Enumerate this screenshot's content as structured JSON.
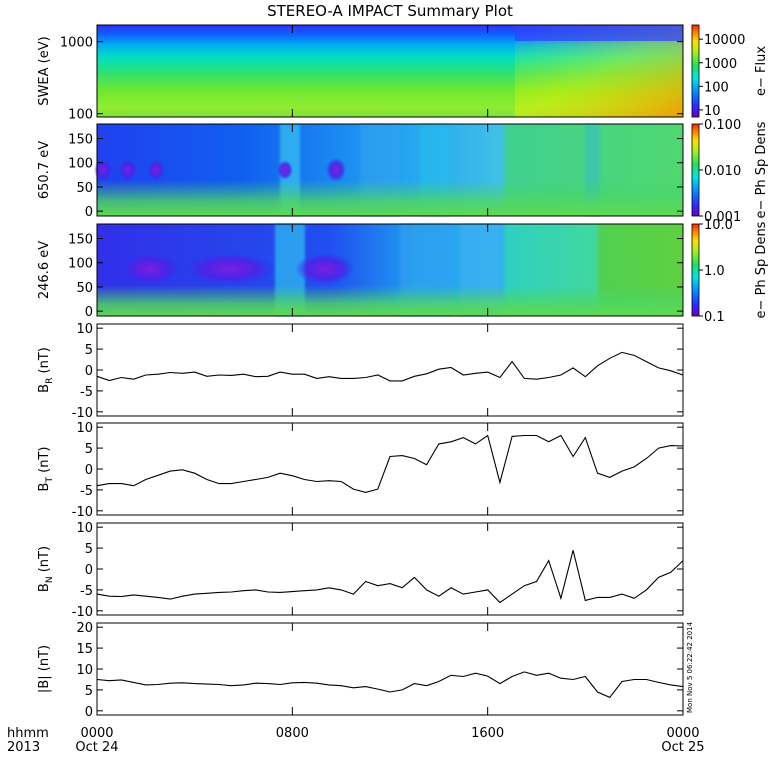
{
  "title": "STEREO-A IMPACT Summary Plot",
  "stamp": "Mon Nov  5 06:22:42 2014",
  "xaxis": {
    "corner_top": "hhmm",
    "corner_bottom": "2013",
    "ticks": [
      {
        "hhmm": "0000",
        "date": "Oct 24",
        "hour": 0
      },
      {
        "hhmm": "0800",
        "date": "",
        "hour": 8
      },
      {
        "hhmm": "1600",
        "date": "",
        "hour": 16
      },
      {
        "hhmm": "0000",
        "date": "Oct 25",
        "hour": 24
      }
    ]
  },
  "colors": {
    "line": "#000000",
    "frame": "#000000"
  },
  "chart_data": [
    {
      "type": "heatmap",
      "id": "swea",
      "ylabel": "SWEA (eV)",
      "yscale": "log",
      "ylim": [
        90,
        1700
      ],
      "yticks": [
        "100",
        "1000"
      ],
      "colorbar": {
        "label": "e− Flux",
        "scale": "log",
        "range": [
          5,
          40000
        ],
        "ticks": [
          "10",
          "100",
          "1000",
          "10000"
        ]
      },
      "x_hours": [
        0,
        2,
        4,
        6,
        8,
        10,
        12,
        14,
        16,
        17.5,
        18,
        20,
        22,
        24
      ],
      "description_levels": "flux increases toward low energy; enhancement after 17.5h"
    },
    {
      "type": "heatmap",
      "id": "pad650",
      "ylabel": "650.7 eV",
      "yscale": "linear",
      "ylim": [
        -10,
        180
      ],
      "yticks": [
        "0",
        "50",
        "100",
        "150"
      ],
      "colorbar": {
        "label": "e− Ph Sp Dens",
        "scale": "log",
        "range": [
          0.001,
          0.1
        ],
        "ticks": [
          "0.001",
          "0.010",
          "0.100"
        ]
      }
    },
    {
      "type": "heatmap",
      "id": "pad246",
      "ylabel": "246.6 eV",
      "yscale": "linear",
      "ylim": [
        -10,
        180
      ],
      "yticks": [
        "0",
        "50",
        "100",
        "150"
      ],
      "colorbar": {
        "label": "e− Ph Sp Dens",
        "scale": "log",
        "range": [
          0.1,
          10
        ],
        "ticks": [
          "0.1",
          "1.0",
          "10.0"
        ]
      }
    },
    {
      "type": "line",
      "id": "br",
      "ylabel_main": "B",
      "ylabel_sub": "R",
      "ylabel_unit": " (nT)",
      "ylim": [
        -11,
        11
      ],
      "yticks": [
        "-10",
        "-5",
        "0",
        "5",
        "10"
      ],
      "x": [
        0,
        0.5,
        1,
        1.5,
        2,
        2.5,
        3,
        3.5,
        4,
        4.5,
        5,
        5.5,
        6,
        6.5,
        7,
        7.5,
        8,
        8.5,
        9,
        9.5,
        10,
        10.5,
        11,
        11.5,
        12,
        12.5,
        13,
        13.5,
        14,
        14.5,
        15,
        15.5,
        16,
        16.5,
        17,
        17.5,
        18,
        18.5,
        19,
        19.5,
        20,
        20.5,
        21,
        21.5,
        22,
        22.5,
        23,
        23.5,
        24
      ],
      "y": [
        -1.5,
        -2.5,
        -1.8,
        -2.2,
        -1.2,
        -1,
        -0.6,
        -0.8,
        -0.5,
        -1.5,
        -1.2,
        -1.3,
        -1,
        -1.6,
        -1.5,
        -0.5,
        -1,
        -1,
        -2,
        -1.6,
        -2,
        -2,
        -1.8,
        -1.2,
        -2.6,
        -2.6,
        -1.5,
        -0.9,
        0.2,
        0.6,
        -1.2,
        -0.8,
        -0.5,
        -1.8,
        2,
        -2,
        -2.2,
        -1.8,
        -1.2,
        0.5,
        -1.6,
        1,
        2.8,
        4.2,
        3.5,
        2,
        0.5,
        -0.2,
        -1.2
      ]
    },
    {
      "type": "line",
      "id": "bt",
      "ylabel_main": "B",
      "ylabel_sub": "T",
      "ylabel_unit": " (nT)",
      "ylim": [
        -11,
        11
      ],
      "yticks": [
        "-10",
        "-5",
        "0",
        "5",
        "10"
      ],
      "x": [
        0,
        0.5,
        1,
        1.5,
        2,
        2.5,
        3,
        3.5,
        4,
        4.5,
        5,
        5.5,
        6,
        6.5,
        7,
        7.5,
        8,
        8.5,
        9,
        9.5,
        10,
        10.5,
        11,
        11.5,
        12,
        12.5,
        13,
        13.5,
        14,
        14.5,
        15,
        15.5,
        16,
        16.5,
        17,
        17.5,
        18,
        18.5,
        19,
        19.5,
        20,
        20.5,
        21,
        21.5,
        22,
        22.5,
        23,
        23.5,
        24
      ],
      "y": [
        -4,
        -3.5,
        -3.5,
        -4,
        -2.5,
        -1.5,
        -0.5,
        -0.2,
        -1,
        -2.5,
        -3.5,
        -3.5,
        -3,
        -2.5,
        -2,
        -1,
        -1.6,
        -2.5,
        -3,
        -2.8,
        -3,
        -4.8,
        -5.6,
        -4.8,
        3,
        3.2,
        2.5,
        1,
        6,
        6.5,
        7.5,
        6,
        8,
        -3.2,
        7.8,
        8,
        8,
        6.5,
        8,
        3,
        7.5,
        -1,
        -2,
        -0.5,
        0.5,
        2.5,
        5,
        5.6,
        5.5
      ]
    },
    {
      "type": "line",
      "id": "bn",
      "ylabel_main": "B",
      "ylabel_sub": "N",
      "ylabel_unit": " (nT)",
      "ylim": [
        -11,
        11
      ],
      "yticks": [
        "-10",
        "-5",
        "0",
        "5",
        "10"
      ],
      "x": [
        0,
        0.5,
        1,
        1.5,
        2,
        2.5,
        3,
        3.5,
        4,
        4.5,
        5,
        5.5,
        6,
        6.5,
        7,
        7.5,
        8,
        8.5,
        9,
        9.5,
        10,
        10.5,
        11,
        11.5,
        12,
        12.5,
        13,
        13.5,
        14,
        14.5,
        15,
        15.5,
        16,
        16.5,
        17,
        17.5,
        18,
        18.5,
        19,
        19.5,
        20,
        20.5,
        21,
        21.5,
        22,
        22.5,
        23,
        23.5,
        24
      ],
      "y": [
        -6,
        -6.5,
        -6.6,
        -6.2,
        -6.5,
        -6.8,
        -7.2,
        -6.5,
        -6,
        -5.8,
        -5.6,
        -5.5,
        -5.2,
        -5,
        -5.5,
        -5.6,
        -5.4,
        -5.2,
        -5,
        -4.5,
        -5,
        -6,
        -3,
        -4,
        -3.5,
        -4.5,
        -2,
        -5,
        -6.5,
        -4.5,
        -6,
        -5.5,
        -5,
        -8,
        -6,
        -4,
        -3,
        2,
        -7,
        4.5,
        -7.5,
        -6.8,
        -6.8,
        -6,
        -7,
        -5,
        -2,
        -0.8,
        2
      ]
    },
    {
      "type": "line",
      "id": "bmag",
      "ylabel_main": "|B| (nT)",
      "ylim": [
        -1,
        21
      ],
      "yticks": [
        "0",
        "5",
        "10",
        "15",
        "20"
      ],
      "x": [
        0,
        0.5,
        1,
        1.5,
        2,
        2.5,
        3,
        3.5,
        4,
        4.5,
        5,
        5.5,
        6,
        6.5,
        7,
        7.5,
        8,
        8.5,
        9,
        9.5,
        10,
        10.5,
        11,
        11.5,
        12,
        12.5,
        13,
        13.5,
        14,
        14.5,
        15,
        15.5,
        16,
        16.5,
        17,
        17.5,
        18,
        18.5,
        19,
        19.5,
        20,
        20.5,
        21,
        21.5,
        22,
        22.5,
        23,
        23.5,
        24
      ],
      "y": [
        7.5,
        7.2,
        7.4,
        6.8,
        6.2,
        6.3,
        6.6,
        6.7,
        6.5,
        6.4,
        6.3,
        6.0,
        6.2,
        6.6,
        6.5,
        6.3,
        6.7,
        6.8,
        6.6,
        6.2,
        6.0,
        5.5,
        5.8,
        5.2,
        4.5,
        5,
        6.5,
        6,
        7,
        8.5,
        8.2,
        9,
        8.3,
        6.5,
        8.2,
        9.3,
        8.5,
        9,
        7.8,
        7.5,
        8.2,
        4.5,
        3.2,
        7,
        7.5,
        7.5,
        6.8,
        6.2,
        5.8
      ]
    }
  ]
}
